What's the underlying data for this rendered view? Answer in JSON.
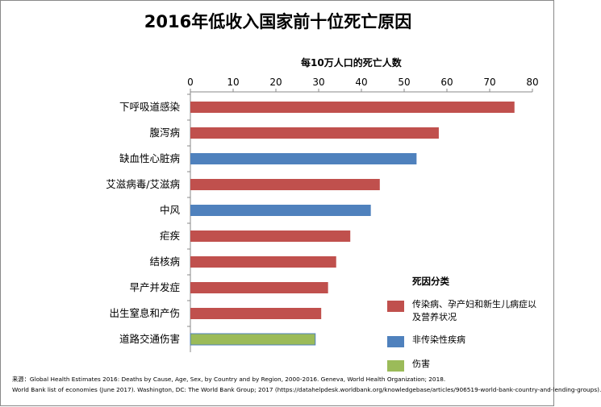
{
  "chart_data": {
    "type": "bar",
    "orientation": "horizontal",
    "title": "2016年低收入国家前十位死亡原因",
    "xlabel": "每10万人口的死亡人数",
    "ylabel": "",
    "xlim": [
      0,
      80
    ],
    "xticks": [
      0,
      10,
      20,
      30,
      40,
      50,
      60,
      70,
      80
    ],
    "xaxis_position": "top",
    "grid": false,
    "categories": [
      "下呼吸道感染",
      "腹泻病",
      "缺血性心脏病",
      "艾滋病毒/艾滋病",
      "中风",
      "疟疾",
      "结核病",
      "早产并发症",
      "出生窒息和产伤",
      "道路交通伤害"
    ],
    "values": [
      75.8,
      58.1,
      52.9,
      44.3,
      42.2,
      37.4,
      34.1,
      32.2,
      30.6,
      29.2
    ],
    "groups": [
      0,
      0,
      1,
      0,
      1,
      0,
      0,
      0,
      0,
      2
    ],
    "legend": {
      "title": "死因分类",
      "placement": "bottom-right",
      "entries": [
        {
          "label": "传染病、孕产妇和新生儿病症以及营养状况",
          "color": "#c0504d"
        },
        {
          "label": "非传染性疾病",
          "color": "#4f81bd"
        },
        {
          "label": "伤害",
          "color": "#9bbb59"
        }
      ]
    }
  },
  "source": {
    "line1": "来源：Global Health Estimates 2016: Deaths by Cause, Age, Sex, by Country and by Region, 2000-2016. Geneva, World Health Organization; 2018.",
    "line2": "World Bank list of economies (June 2017). Washington, DC: The World Bank Group; 2017 (https://datahelpdesk.worldbank.org/knowledgebase/articles/906519-world-bank-country-and-lending-groups)."
  }
}
